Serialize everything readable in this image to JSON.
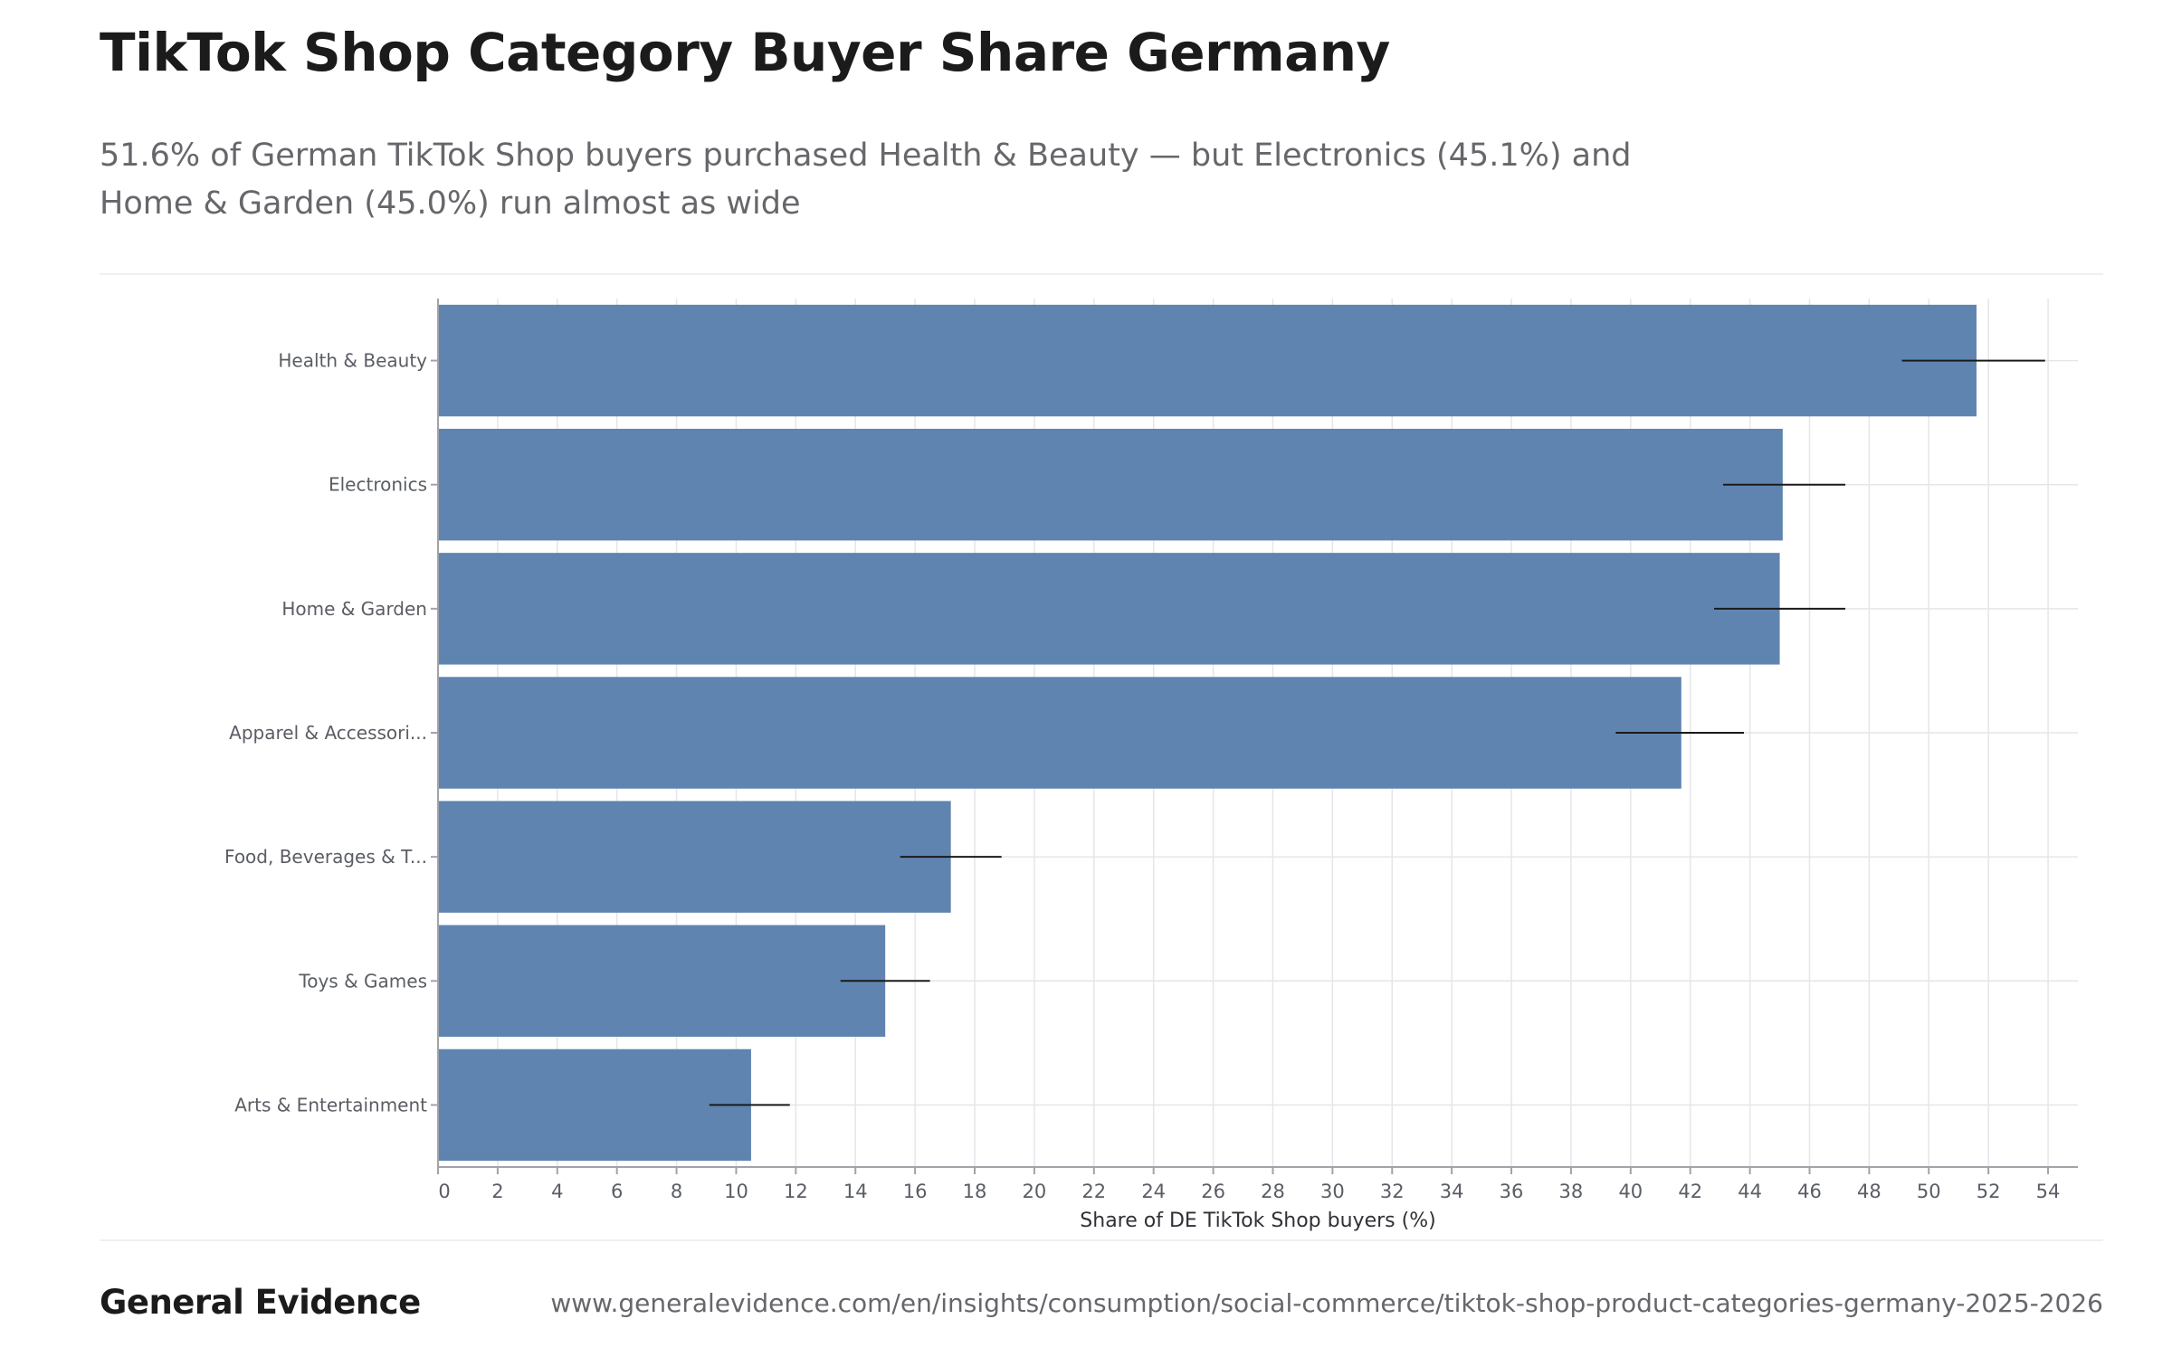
{
  "header": {
    "title": "TikTok Shop Category Buyer Share Germany",
    "subtitle": "51.6% of German TikTok Shop buyers purchased Health & Beauty — but Electronics (45.1%) and Home & Garden (45.0%) run almost as wide"
  },
  "footer": {
    "brand": "General Evidence",
    "source": "www.generalevidence.com/en/insights/consumption/social-commerce/tiktok-shop-product-categories-germany-2025-2026"
  },
  "colors": {
    "bar": "#5f84b0",
    "error_bar": "#1a1a1a",
    "grid": "#e6e6ea",
    "axis": "#a0a3a8",
    "tick_text": "#5a5d63"
  },
  "chart_data": {
    "type": "bar",
    "orientation": "horizontal",
    "categories": [
      "Health & Beauty",
      "Electronics",
      "Home & Garden",
      "Apparel & Accessori...",
      "Food, Beverages & T...",
      "Toys & Games",
      "Arts & Entertainment"
    ],
    "values": [
      51.6,
      45.1,
      45.0,
      41.7,
      17.2,
      15.0,
      10.5
    ],
    "error_low": [
      49.1,
      43.1,
      42.8,
      39.5,
      15.5,
      13.5,
      9.1
    ],
    "error_high": [
      53.9,
      47.2,
      47.2,
      43.8,
      18.9,
      16.5,
      11.8
    ],
    "xlabel": "Share of DE TikTok Shop buyers (%)",
    "ylabel": "",
    "xlim": [
      0,
      55
    ],
    "xticks": [
      0,
      2,
      4,
      6,
      8,
      10,
      12,
      14,
      16,
      18,
      20,
      22,
      24,
      26,
      28,
      30,
      32,
      34,
      36,
      38,
      40,
      42,
      44,
      46,
      48,
      50,
      52,
      54
    ],
    "grid": true,
    "legend": "none"
  }
}
